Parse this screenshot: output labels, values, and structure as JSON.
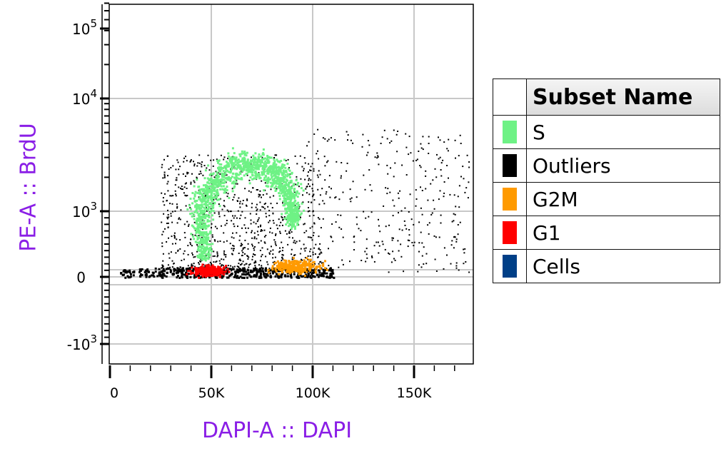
{
  "chart_data": {
    "type": "scatter",
    "title": "",
    "xlabel": "DAPI-A :: DAPI",
    "ylabel": "PE-A :: BrdU",
    "x_scale": "linear",
    "y_scale": "biexponential",
    "xlim": [
      -4000,
      179000
    ],
    "ylim": [
      -1800,
      110000
    ],
    "grid": true,
    "x_ticks": [
      {
        "value": 0,
        "label": "0"
      },
      {
        "value": 50000,
        "label": "50K"
      },
      {
        "value": 100000,
        "label": "100K"
      },
      {
        "value": 150000,
        "label": "150K"
      }
    ],
    "y_ticks": [
      {
        "value": 100000,
        "base": "10",
        "exp": "5"
      },
      {
        "value": 10000,
        "base": "10",
        "exp": "4"
      },
      {
        "value": 1000,
        "base": "10",
        "exp": "3"
      },
      {
        "value": 0,
        "base": "0",
        "exp": ""
      },
      {
        "value": -1000,
        "base": "-10",
        "exp": "3"
      }
    ],
    "legend": {
      "placement": "right",
      "header": "Subset Name",
      "entries": [
        {
          "name": "S",
          "color": "#6ef285"
        },
        {
          "name": "Outliers",
          "color": "#000000"
        },
        {
          "name": "G2M",
          "color": "#ff9a00"
        },
        {
          "name": "G1",
          "color": "#ff0000"
        },
        {
          "name": "Cells",
          "color": "#003f87"
        }
      ]
    },
    "populations": [
      {
        "name": "Outliers",
        "color": "#000000",
        "clusters": [
          {
            "shape": "band",
            "x": [
              5000,
              110000
            ],
            "y": [
              0,
              150
            ],
            "n": 500
          },
          {
            "shape": "cloud",
            "x": [
              25000,
              105000
            ],
            "y": [
              100,
              3200
            ],
            "n": 900
          },
          {
            "shape": "cloud",
            "x": [
              95000,
              180000
            ],
            "y": [
              80,
              5500
            ],
            "n": 350
          }
        ]
      },
      {
        "name": "S",
        "color": "#6ef285",
        "path": [
          [
            46000,
            283
          ],
          [
            44400,
            739
          ],
          [
            46000,
            1262
          ],
          [
            51400,
            1955
          ],
          [
            62000,
            2540
          ],
          [
            72500,
            2615
          ],
          [
            81300,
            2260
          ],
          [
            86600,
            1640
          ],
          [
            90000,
            1092
          ],
          [
            90000,
            848
          ]
        ],
        "n": 1500
      },
      {
        "name": "G1",
        "color": "#ff0000",
        "center": [
          47900,
          110
        ],
        "spread": [
          7500,
          90
        ],
        "n": 260
      },
      {
        "name": "G2M",
        "color": "#ff9a00",
        "center": [
          90800,
          174
        ],
        "spread": [
          11000,
          110
        ],
        "n": 280
      }
    ]
  }
}
